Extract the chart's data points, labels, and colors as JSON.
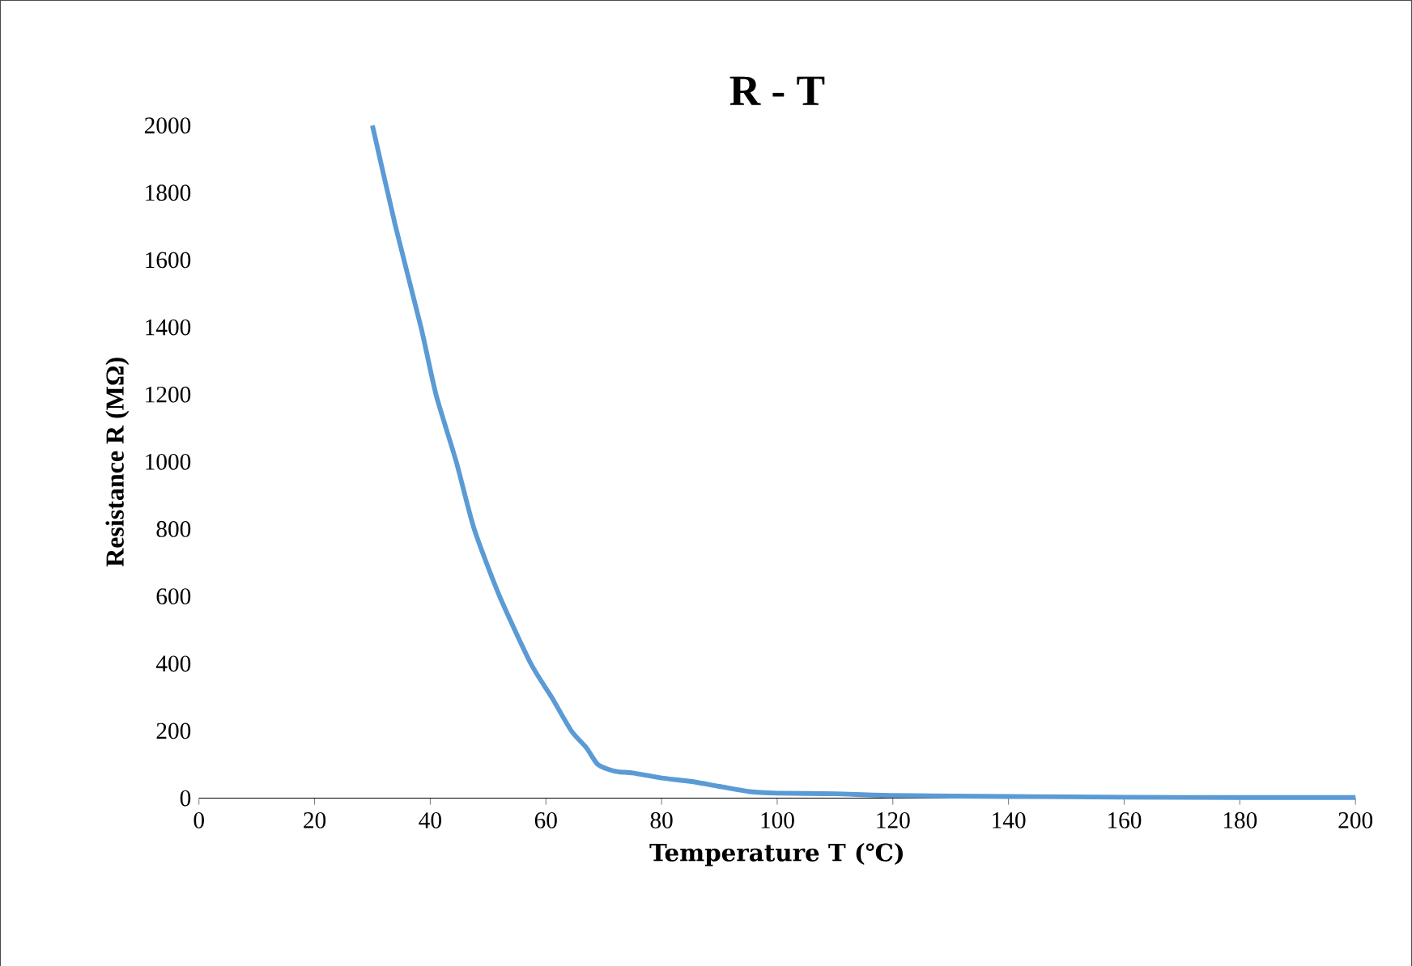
{
  "chart_data": {
    "type": "line",
    "title": "R - T",
    "xlabel": "Temperature T (℃)",
    "ylabel": "Resistance R (MΩ)",
    "series": [
      {
        "color": "#5b9bd5",
        "x": [
          30,
          34,
          38.4,
          41,
          44.5,
          47.6,
          52,
          57.4,
          61,
          64.4,
          67,
          69,
          72,
          75,
          80,
          85,
          90,
          95,
          100,
          110,
          120,
          140,
          160,
          180,
          200
        ],
        "values": [
          2000,
          1700,
          1400,
          1200,
          1000,
          800,
          600,
          400,
          300,
          200,
          150,
          100,
          80,
          75,
          60,
          50,
          35,
          20,
          15,
          13,
          8,
          5,
          3,
          2,
          2
        ]
      }
    ],
    "xlim": [
      0,
      200
    ],
    "ylim": [
      0,
      2000
    ],
    "xticks": [
      0,
      20,
      40,
      60,
      80,
      100,
      120,
      140,
      160,
      180,
      200
    ],
    "yticks": [
      0,
      200,
      400,
      600,
      800,
      1000,
      1200,
      1400,
      1600,
      1800,
      2000
    ],
    "marker": "none",
    "line_style": "solid"
  }
}
